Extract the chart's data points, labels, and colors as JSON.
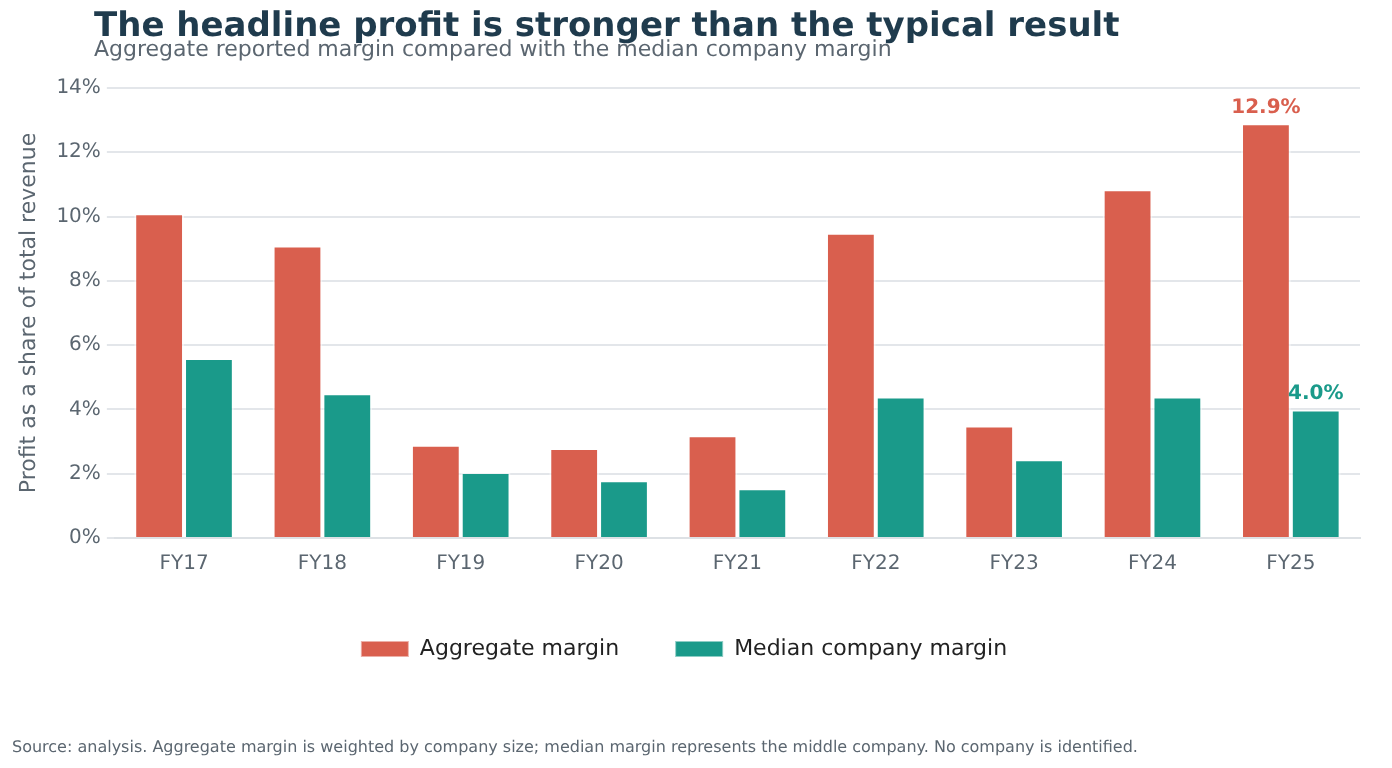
{
  "chart_data": {
    "type": "bar",
    "title": "The headline profit is stronger than the typical result",
    "subtitle": "Aggregate reported margin compared with the median company margin",
    "ylabel": "Profit as a share of total revenue",
    "categories": [
      "FY17",
      "FY18",
      "FY19",
      "FY20",
      "FY21",
      "FY22",
      "FY23",
      "FY24",
      "FY25"
    ],
    "series": [
      {
        "name": "Aggregate margin",
        "color": "#d95f4e",
        "values": [
          10.1,
          9.1,
          2.9,
          2.8,
          3.2,
          9.5,
          3.5,
          10.85,
          12.9
        ],
        "value_labels": [
          null,
          null,
          null,
          null,
          null,
          null,
          null,
          null,
          "12.9%"
        ]
      },
      {
        "name": "Median company margin",
        "color": "#1a9a8a",
        "values": [
          5.6,
          4.5,
          2.05,
          1.8,
          1.55,
          4.4,
          2.45,
          4.4,
          4.0
        ],
        "value_labels": [
          null,
          null,
          null,
          null,
          null,
          null,
          null,
          null,
          "4.0%"
        ]
      }
    ],
    "ylim": [
      0,
      14
    ],
    "yticks": [
      {
        "value": 0,
        "label": "0%"
      },
      {
        "value": 2,
        "label": "2%"
      },
      {
        "value": 4,
        "label": "4%"
      },
      {
        "value": 6,
        "label": "6%"
      },
      {
        "value": 8,
        "label": "8%"
      },
      {
        "value": 10,
        "label": "10%"
      },
      {
        "value": 12,
        "label": "12%"
      },
      {
        "value": 14,
        "label": "14%"
      }
    ],
    "grid": "y",
    "legend": "bottom",
    "annotations": [
      "Source: analysis. Aggregate margin is weighted by company size; median margin represents the middle company. No company is identified."
    ]
  }
}
